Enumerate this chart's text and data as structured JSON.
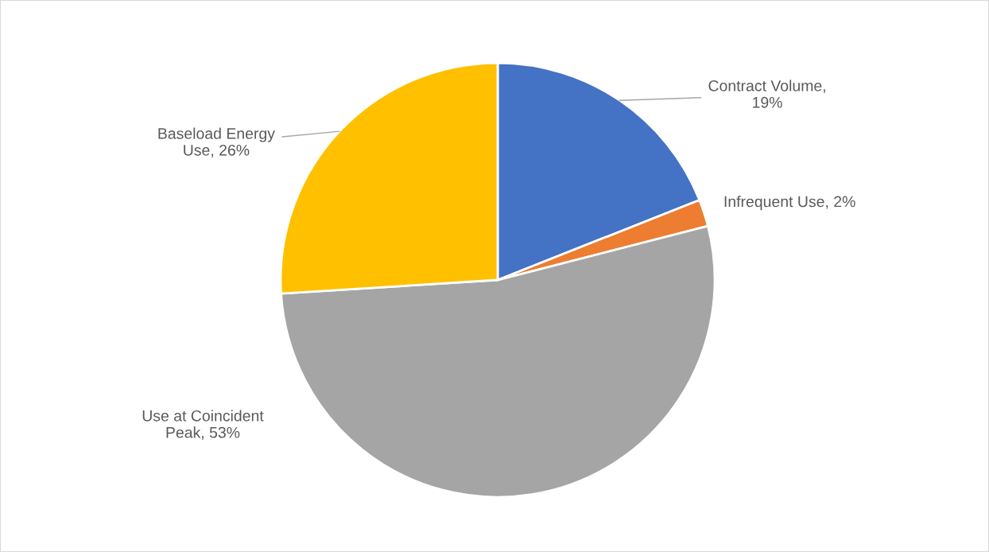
{
  "chart_data": {
    "type": "pie",
    "categories": [
      "Contract Volume, 19%",
      "Infrequent Use, 2%",
      "Use at Coincident Peak, 53%",
      "Baseload Energy Use, 26%"
    ],
    "values": [
      19,
      2,
      53,
      26
    ],
    "colors": [
      "#4472c4",
      "#ed7d31",
      "#a5a5a5",
      "#ffc000"
    ]
  }
}
